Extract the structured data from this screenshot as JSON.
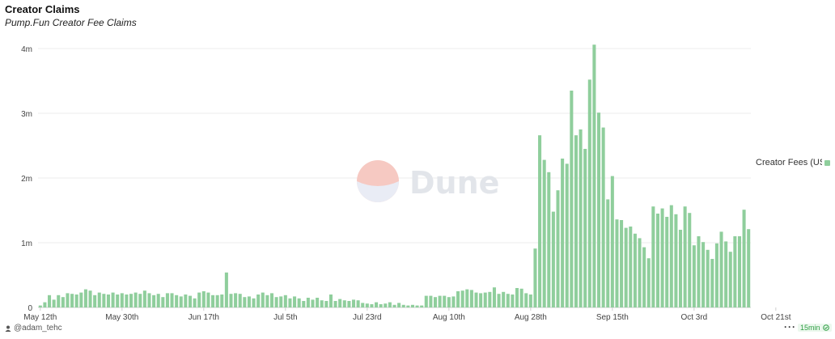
{
  "title": "Creator Claims",
  "subtitle": "Pump.Fun Creator Fee Claims",
  "watermark": "Dune",
  "author": "@adam_tehc",
  "refresh_label": "15min",
  "more_icon": "ellipsis-icon",
  "colors": {
    "bar": "#8fce9c",
    "grid": "#ececec",
    "axis_text": "#444444",
    "watermark_top": "#f6c9c2",
    "watermark_bottom": "#e9ecf5",
    "watermark_text": "#e2e5ea"
  },
  "chart_data": {
    "type": "bar",
    "title": "Creator Claims",
    "subtitle": "Pump.Fun Creator Fee Claims",
    "xlabel": "",
    "ylabel": "",
    "grid": true,
    "legend_position": "right",
    "ylim": [
      0,
      4200000
    ],
    "yticks": [
      {
        "value": 0,
        "label": "0"
      },
      {
        "value": 1000000,
        "label": "1m"
      },
      {
        "value": 2000000,
        "label": "2m"
      },
      {
        "value": 3000000,
        "label": "3m"
      },
      {
        "value": 4000000,
        "label": "4m"
      }
    ],
    "xtick_labels": [
      {
        "index": 0,
        "label": "May 12th"
      },
      {
        "index": 18,
        "label": "May 30th"
      },
      {
        "index": 36,
        "label": "Jun 17th"
      },
      {
        "index": 54,
        "label": "Jul 5th"
      },
      {
        "index": 72,
        "label": "Jul 23rd"
      },
      {
        "index": 90,
        "label": "Aug 10th"
      },
      {
        "index": 108,
        "label": "Aug 28th"
      },
      {
        "index": 126,
        "label": "Sep 15th"
      },
      {
        "index": 144,
        "label": "Oct 3rd"
      },
      {
        "index": 162,
        "label": "Oct 21st"
      }
    ],
    "series": [
      {
        "name": "Creator Fees (USD)",
        "values": [
          30000,
          80000,
          190000,
          120000,
          190000,
          160000,
          220000,
          210000,
          200000,
          230000,
          280000,
          260000,
          190000,
          230000,
          210000,
          200000,
          230000,
          200000,
          220000,
          200000,
          210000,
          230000,
          210000,
          260000,
          220000,
          190000,
          210000,
          160000,
          220000,
          220000,
          190000,
          170000,
          200000,
          180000,
          140000,
          230000,
          250000,
          230000,
          190000,
          190000,
          200000,
          540000,
          210000,
          220000,
          210000,
          160000,
          170000,
          140000,
          200000,
          230000,
          190000,
          220000,
          160000,
          170000,
          190000,
          140000,
          170000,
          140000,
          100000,
          150000,
          120000,
          150000,
          110000,
          100000,
          200000,
          100000,
          130000,
          110000,
          100000,
          120000,
          110000,
          70000,
          60000,
          50000,
          80000,
          50000,
          60000,
          80000,
          40000,
          70000,
          40000,
          30000,
          40000,
          30000,
          30000,
          180000,
          180000,
          160000,
          180000,
          180000,
          160000,
          170000,
          250000,
          260000,
          280000,
          270000,
          230000,
          220000,
          230000,
          240000,
          310000,
          210000,
          240000,
          210000,
          200000,
          300000,
          290000,
          220000,
          200000,
          910000,
          2660000,
          2280000,
          2090000,
          1480000,
          1810000,
          2300000,
          2220000,
          3350000,
          2660000,
          2750000,
          2450000,
          3520000,
          4060000,
          3010000,
          2780000,
          1670000,
          2030000,
          1360000,
          1350000,
          1230000,
          1250000,
          1140000,
          1070000,
          930000,
          760000,
          1560000,
          1450000,
          1530000,
          1400000,
          1580000,
          1440000,
          1200000,
          1560000,
          1460000,
          960000,
          1100000,
          1010000,
          890000,
          750000,
          990000,
          1170000,
          1020000,
          860000,
          1100000,
          1100000,
          1510000,
          1210000
        ]
      }
    ]
  }
}
